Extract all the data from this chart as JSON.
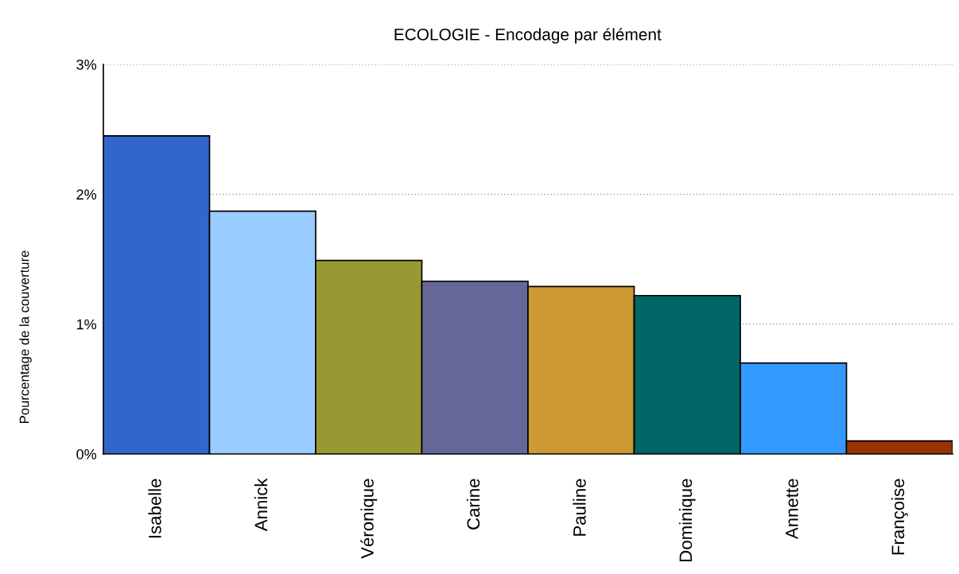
{
  "chart_data": {
    "type": "bar",
    "title": "ECOLOGIE - Encodage par élément",
    "ylabel": "Pourcentage de la couverture",
    "categories": [
      "Isabelle",
      "Annick",
      "Véronique",
      "Carine",
      "Pauline",
      "Dominique",
      "Annette",
      "Françoise"
    ],
    "values": [
      2.45,
      1.87,
      1.49,
      1.33,
      1.29,
      1.22,
      0.7,
      0.1
    ],
    "colors": [
      "#3366cc",
      "#99ccff",
      "#999933",
      "#666699",
      "#cc9933",
      "#006666",
      "#3399ff",
      "#993300"
    ],
    "ylim": [
      0,
      3
    ],
    "yticks": [
      {
        "value": 0,
        "label": "0%"
      },
      {
        "value": 1,
        "label": "1%"
      },
      {
        "value": 2,
        "label": "2%"
      },
      {
        "value": 3,
        "label": "3%"
      }
    ],
    "grid": "y",
    "legend": false
  }
}
